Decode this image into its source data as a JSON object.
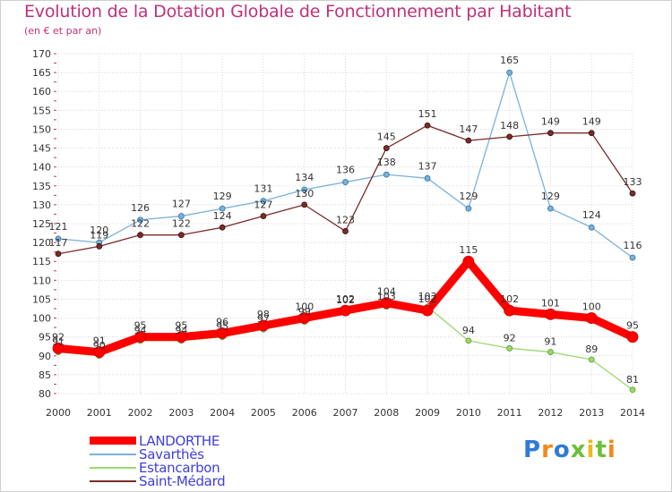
{
  "title": "Evolution de la Dotation Globale de Fonctionnement par Habitant",
  "subtitle": "(en € et par an)",
  "logo": {
    "text": "Proxiti",
    "letters": [
      {
        "ch": "P",
        "color": "#2f7bd6"
      },
      {
        "ch": "r",
        "color": "#f08a1c"
      },
      {
        "ch": "o",
        "color": "#2f7bd6"
      },
      {
        "ch": "x",
        "color": "#6cbf3a"
      },
      {
        "ch": "i",
        "color": "#f0b81c"
      },
      {
        "ch": "t",
        "color": "#6cbf3a"
      },
      {
        "ch": "i",
        "color": "#f08a1c"
      }
    ]
  },
  "chart_data": {
    "type": "line",
    "x": [
      "2000",
      "2001",
      "2002",
      "2003",
      "2004",
      "2005",
      "2006",
      "2007",
      "2008",
      "2009",
      "2010",
      "2011",
      "2012",
      "2013",
      "2014"
    ],
    "ylim": [
      80,
      170
    ],
    "yticks": [
      80,
      85,
      90,
      95,
      100,
      105,
      110,
      115,
      120,
      125,
      130,
      135,
      140,
      145,
      150,
      155,
      160,
      165,
      170
    ],
    "grid": true,
    "legend_position": "bottom-left",
    "series": [
      {
        "name": "LANDORTHE",
        "color": "#ff0000",
        "width": 9,
        "marker": 6,
        "values": [
          92,
          91,
          95,
          95,
          96,
          98,
          100,
          102,
          104,
          102,
          115,
          102,
          101,
          100,
          95
        ]
      },
      {
        "name": "Savarthès",
        "color": "#7ab2d8",
        "width": 1.3,
        "marker": 3,
        "values": [
          121,
          120,
          126,
          127,
          129,
          131,
          134,
          136,
          138,
          137,
          129,
          165,
          129,
          124,
          116
        ]
      },
      {
        "name": "Estancarbon",
        "color": "#9bd86e",
        "width": 1.3,
        "marker": 3,
        "values": [
          91,
          90,
          94,
          94,
          95,
          97,
          99,
          102,
          103,
          103,
          94,
          92,
          91,
          89,
          81
        ]
      },
      {
        "name": "Saint-Médard",
        "color": "#7a2b2b",
        "width": 1.3,
        "marker": 3,
        "values": [
          117,
          119,
          122,
          122,
          124,
          127,
          130,
          123,
          145,
          151,
          147,
          148,
          149,
          149,
          133
        ]
      }
    ]
  }
}
